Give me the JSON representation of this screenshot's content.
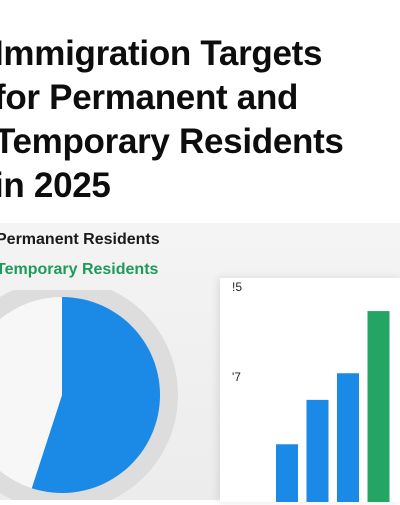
{
  "title_lines": [
    "Immigration Targets",
    "for Permanent and",
    "Temporary Residents",
    "in 2025"
  ],
  "legend": {
    "permanent": "Permanent Residents",
    "temporary": "Temporary Residents"
  },
  "colors": {
    "permanent": "#1a1a1a",
    "temporary": "#1f9a5a",
    "pie_blue": "#1a8ae6",
    "pie_light": "#f7f7f7",
    "pie_ring": "#dddddd",
    "bar_blue": "#1a8ae6",
    "bar_green": "#24a563"
  },
  "chart_data": [
    {
      "type": "pie",
      "slices": [
        {
          "value": 55
        },
        {
          "value": 45
        }
      ]
    },
    {
      "type": "bar",
      "ticks": [
        "!5",
        "'7"
      ],
      "values": [
        1.3,
        2.3,
        2.9,
        4.3
      ],
      "ylim": [
        0,
        5
      ]
    }
  ]
}
